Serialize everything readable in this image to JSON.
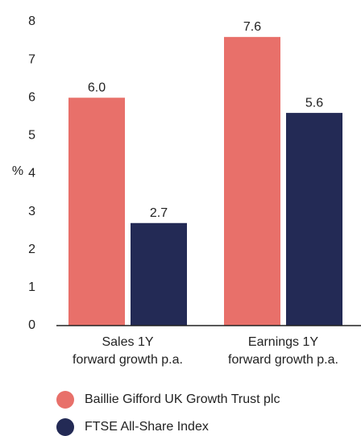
{
  "chart_data": {
    "type": "bar",
    "y_label": "%",
    "categories": [
      "Sales 1Y\nforward growth p.a.",
      "Earnings 1Y\nforward growth p.a."
    ],
    "series": [
      {
        "name": "Baillie Gifford UK Growth Trust plc",
        "color": "#e8706a",
        "values": [
          6.0,
          7.6
        ],
        "value_labels": [
          "6.0",
          "7.6"
        ]
      },
      {
        "name": "FTSE All-Share Index",
        "color": "#232a55",
        "values": [
          2.7,
          5.6
        ],
        "value_labels": [
          "2.7",
          "5.6"
        ]
      }
    ],
    "ylim": [
      0,
      8
    ],
    "yticks": [
      0,
      1,
      2,
      3,
      4,
      5,
      6,
      7,
      8
    ],
    "grid": false
  }
}
